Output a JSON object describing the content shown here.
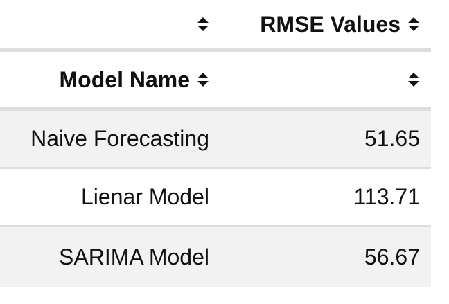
{
  "table": {
    "header_row_1": {
      "col1_label": "",
      "col2_label": "RMSE Values"
    },
    "header_row_2": {
      "col1_label": "Model Name",
      "col2_label": ""
    },
    "sort_icon": "sort-arrows-icon",
    "rows": [
      {
        "model": "Naive Forecasting",
        "rmse": "51.65"
      },
      {
        "model": "Lienar Model",
        "rmse": "113.71"
      },
      {
        "model": "SARIMA Model",
        "rmse": "56.67"
      }
    ]
  }
}
